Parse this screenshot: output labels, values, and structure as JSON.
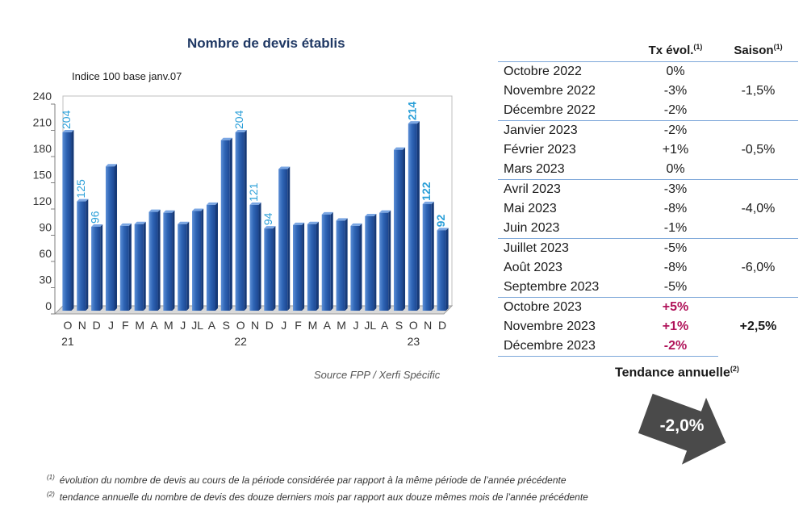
{
  "chart_data": {
    "type": "bar",
    "title": "Nombre de devis établis",
    "subtitle": "Indice 100 base janv.07",
    "source": "Source FPP / Xerfi Spécific",
    "ylim": [
      0,
      240
    ],
    "yticks": [
      0,
      30,
      60,
      90,
      120,
      150,
      180,
      210,
      240
    ],
    "categories": [
      "O",
      "N",
      "D",
      "J",
      "F",
      "M",
      "A",
      "M",
      "J",
      "JL",
      "A",
      "S",
      "O",
      "N",
      "D",
      "J",
      "F",
      "M",
      "A",
      "M",
      "J",
      "JL",
      "A",
      "S",
      "O",
      "N",
      "D"
    ],
    "year_labels": [
      {
        "index": 0,
        "label": "21"
      },
      {
        "index": 12,
        "label": "22"
      },
      {
        "index": 24,
        "label": "23"
      }
    ],
    "values": [
      204,
      125,
      96,
      165,
      97,
      99,
      113,
      112,
      99,
      114,
      121,
      195,
      204,
      121,
      94,
      162,
      98,
      99,
      110,
      103,
      97,
      108,
      112,
      184,
      214,
      122,
      92
    ],
    "data_labels": [
      {
        "index": 0,
        "text": "204",
        "bold": false
      },
      {
        "index": 1,
        "text": "125",
        "bold": false
      },
      {
        "index": 2,
        "text": "96",
        "bold": false
      },
      {
        "index": 12,
        "text": "204",
        "bold": false
      },
      {
        "index": 13,
        "text": "121",
        "bold": false
      },
      {
        "index": 14,
        "text": "94",
        "bold": false
      },
      {
        "index": 24,
        "text": "214",
        "bold": true
      },
      {
        "index": 25,
        "text": "122",
        "bold": true
      },
      {
        "index": 26,
        "text": "92",
        "bold": true
      }
    ],
    "bar_color": "#2e64b4",
    "label_color": "#2a9fd8"
  },
  "table": {
    "header_tx": "Tx évol.",
    "header_saison": "Saison",
    "sup1": "(1)",
    "groups": [
      {
        "season": "-1,5%",
        "rows": [
          {
            "month": "Octobre 2022",
            "tx": "0%"
          },
          {
            "month": "Novembre 2022",
            "tx": "-3%"
          },
          {
            "month": "Décembre 2022",
            "tx": "-2%"
          }
        ]
      },
      {
        "season": "-0,5%",
        "rows": [
          {
            "month": "Janvier 2023",
            "tx": "-2%"
          },
          {
            "month": "Février 2023",
            "tx": "+1%"
          },
          {
            "month": "Mars 2023",
            "tx": "0%"
          }
        ]
      },
      {
        "season": "-4,0%",
        "rows": [
          {
            "month": "Avril 2023",
            "tx": "-3%"
          },
          {
            "month": "Mai 2023",
            "tx": "-8%"
          },
          {
            "month": "Juin 2023",
            "tx": "-1%"
          }
        ]
      },
      {
        "season": "-6,0%",
        "rows": [
          {
            "month": "Juillet 2023",
            "tx": "-5%"
          },
          {
            "month": "Août 2023",
            "tx": "-8%"
          },
          {
            "month": "Septembre 2023",
            "tx": "-5%"
          }
        ]
      },
      {
        "season": "+2,5%",
        "highlight": true,
        "rows": [
          {
            "month": "Octobre 2023",
            "tx": "+5%"
          },
          {
            "month": "Novembre 2023",
            "tx": "+1%"
          },
          {
            "month": "Décembre 2023",
            "tx": "-2%"
          }
        ]
      }
    ]
  },
  "trend": {
    "title": "Tendance annuelle",
    "sup": "(2)",
    "value": "-2,0%"
  },
  "footnotes": [
    {
      "mark": "(1)",
      "text": "évolution du nombre de devis au cours de la période considérée par rapport à la même période de l’année précédente"
    },
    {
      "mark": "(2)",
      "text": "tendance annuelle du nombre de devis des douze derniers mois par rapport aux douze mêmes mois de l’année précédente"
    }
  ]
}
